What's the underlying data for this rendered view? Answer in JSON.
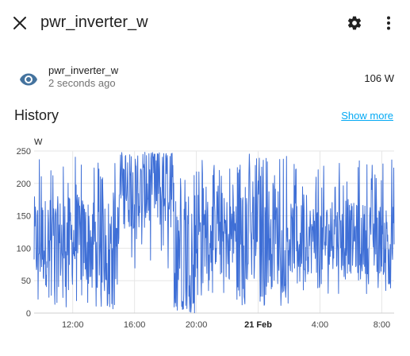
{
  "header": {
    "title": "pwr_inverter_w",
    "close_icon": "close-icon",
    "settings_icon": "gear-icon",
    "more_icon": "more-vert-icon"
  },
  "entity": {
    "name": "pwr_inverter_w",
    "last_changed": "2 seconds ago",
    "state": "106 W",
    "icon": "eye-icon",
    "icon_color": "#44739e"
  },
  "history": {
    "title": "History",
    "show_more": "Show more"
  },
  "chart_data": {
    "type": "line",
    "unit_label": "W",
    "ylim": [
      0,
      250
    ],
    "y_ticks": [
      "0",
      "50",
      "100",
      "150",
      "200",
      "250"
    ],
    "x_ticks": [
      "12:00",
      "16:00",
      "20:00",
      "21 Feb",
      "4:00",
      "8:00"
    ],
    "x_tick_bold": [
      false,
      false,
      false,
      true,
      false,
      false
    ],
    "grid": true,
    "series_color": "#3f6fd6",
    "series": [
      {
        "name": "",
        "segments": [
          {
            "t_start": "09:30",
            "t_end": "15:00",
            "min": 5,
            "max": 245,
            "typical": [
              40,
              180
            ]
          },
          {
            "t_start": "15:00",
            "t_end": "18:30",
            "min": 60,
            "max": 248,
            "typical": [
              130,
              240
            ]
          },
          {
            "t_start": "18:30",
            "t_end": "20:30",
            "min": 0,
            "max": 245,
            "typical": [
              20,
              200
            ]
          },
          {
            "t_start": "20:30",
            "t_end": "22:30",
            "min": 30,
            "max": 230,
            "typical": [
              70,
              180
            ]
          },
          {
            "t_start": "22:30",
            "t_end": "02:00",
            "min": 10,
            "max": 248,
            "typical": [
              40,
              200
            ]
          },
          {
            "t_start": "02:00",
            "t_end": "08:30",
            "min": 30,
            "max": 240,
            "typical": [
              60,
              170
            ]
          }
        ],
        "last_value": 106
      }
    ]
  }
}
